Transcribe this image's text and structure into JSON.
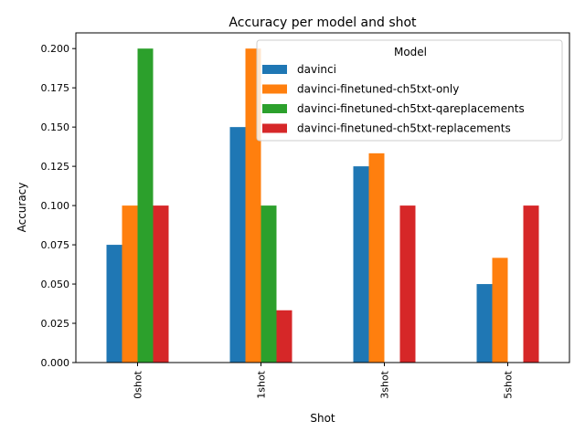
{
  "chart_data": {
    "type": "bar",
    "title": "Accuracy per model and shot",
    "xlabel": "Shot",
    "ylabel": "Accuracy",
    "categories": [
      "0shot",
      "1shot",
      "3shot",
      "5shot"
    ],
    "series": [
      {
        "name": "davinci",
        "color": "#1f77b4",
        "values": [
          0.075,
          0.15,
          0.125,
          0.05
        ]
      },
      {
        "name": "davinci-finetuned-ch5txt-only",
        "color": "#ff7f0e",
        "values": [
          0.1,
          0.2,
          0.1333,
          0.0667
        ]
      },
      {
        "name": "davinci-finetuned-ch5txt-qareplacements",
        "color": "#2ca02c",
        "values": [
          0.2,
          0.1,
          0.0,
          0.0
        ]
      },
      {
        "name": "davinci-finetuned-ch5txt-replacements",
        "color": "#d62728",
        "values": [
          0.1,
          0.0333,
          0.1,
          0.1
        ]
      }
    ],
    "ylim": [
      0,
      0.21
    ],
    "yticks": [
      "0.000",
      "0.025",
      "0.050",
      "0.075",
      "0.100",
      "0.125",
      "0.150",
      "0.175",
      "0.200"
    ],
    "legend": {
      "title": "Model",
      "position": "top-right"
    },
    "grid": false
  }
}
